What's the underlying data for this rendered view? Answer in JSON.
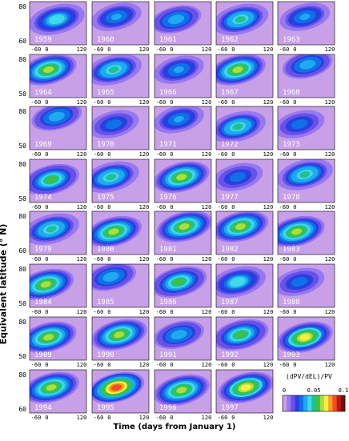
{
  "chart_data": {
    "type": "heatmap",
    "ylabel": "Equivalent latitude (° N)",
    "xlabel": "Time (days from January 1)",
    "colorbar": {
      "label": "(dPV/dEL)/PV",
      "tick_labels": [
        "0",
        "0.05",
        "0.1"
      ],
      "range": [
        0,
        0.1
      ],
      "colors": [
        "#c8a0e8",
        "#9878f0",
        "#6850e8",
        "#2840e0",
        "#1070e8",
        "#20a8f0",
        "#40d8e8",
        "#20c090",
        "#40c040",
        "#a8e040",
        "#f8f040",
        "#f8a020",
        "#f05020",
        "#c01818",
        "#701010"
      ]
    },
    "x_tick_labels": [
      "-60",
      "0",
      "120"
    ],
    "x_range": [
      -60,
      150
    ],
    "y_tick_labels": [
      "80",
      "60",
      "50"
    ],
    "panels": [
      {
        "year": "1959",
        "row": 0,
        "col": 0,
        "peak_day": 40,
        "peak_lat": 68,
        "strength": 0.045
      },
      {
        "year": "1960",
        "row": 0,
        "col": 1,
        "peak_day": 30,
        "peak_lat": 70,
        "strength": 0.035
      },
      {
        "year": "1961",
        "row": 0,
        "col": 2,
        "peak_day": 20,
        "peak_lat": 68,
        "strength": 0.04
      },
      {
        "year": "1962",
        "row": 0,
        "col": 3,
        "peak_day": 30,
        "peak_lat": 68,
        "strength": 0.05
      },
      {
        "year": "1963",
        "row": 0,
        "col": 4,
        "peak_day": 40,
        "peak_lat": 70,
        "strength": 0.035
      },
      {
        "year": "1964",
        "row": 1,
        "col": 0,
        "peak_day": 10,
        "peak_lat": 70,
        "strength": 0.06
      },
      {
        "year": "1965",
        "row": 1,
        "col": 1,
        "peak_day": 20,
        "peak_lat": 70,
        "strength": 0.05
      },
      {
        "year": "1966",
        "row": 1,
        "col": 2,
        "peak_day": 30,
        "peak_lat": 70,
        "strength": 0.035
      },
      {
        "year": "1967",
        "row": 1,
        "col": 3,
        "peak_day": 20,
        "peak_lat": 70,
        "strength": 0.06
      },
      {
        "year": "1968",
        "row": 1,
        "col": 4,
        "peak_day": 50,
        "peak_lat": 74,
        "strength": 0.04
      },
      {
        "year": "1969",
        "row": 2,
        "col": 0,
        "peak_day": 40,
        "peak_lat": 74,
        "strength": 0.04
      },
      {
        "year": "1970",
        "row": 2,
        "col": 1,
        "peak_day": 20,
        "peak_lat": 68,
        "strength": 0.03
      },
      {
        "year": "1971",
        "row": 2,
        "col": 2,
        "peak_day": 30,
        "peak_lat": 72,
        "strength": 0.035
      },
      {
        "year": "1972",
        "row": 2,
        "col": 3,
        "peak_day": 20,
        "peak_lat": 66,
        "strength": 0.05
      },
      {
        "year": "1973",
        "row": 2,
        "col": 4,
        "peak_day": 20,
        "peak_lat": 68,
        "strength": 0.03
      },
      {
        "year": "1974",
        "row": 3,
        "col": 0,
        "peak_day": 20,
        "peak_lat": 66,
        "strength": 0.055
      },
      {
        "year": "1975",
        "row": 3,
        "col": 1,
        "peak_day": 10,
        "peak_lat": 68,
        "strength": 0.05
      },
      {
        "year": "1976",
        "row": 3,
        "col": 2,
        "peak_day": 40,
        "peak_lat": 68,
        "strength": 0.06
      },
      {
        "year": "1977",
        "row": 3,
        "col": 3,
        "peak_day": 20,
        "peak_lat": 68,
        "strength": 0.03
      },
      {
        "year": "1978",
        "row": 3,
        "col": 4,
        "peak_day": 40,
        "peak_lat": 70,
        "strength": 0.05
      },
      {
        "year": "1979",
        "row": 4,
        "col": 0,
        "peak_day": 20,
        "peak_lat": 68,
        "strength": 0.05
      },
      {
        "year": "1980",
        "row": 4,
        "col": 1,
        "peak_day": 20,
        "peak_lat": 66,
        "strength": 0.06
      },
      {
        "year": "1981",
        "row": 4,
        "col": 2,
        "peak_day": 50,
        "peak_lat": 70,
        "strength": 0.06
      },
      {
        "year": "1982",
        "row": 4,
        "col": 3,
        "peak_day": 30,
        "peak_lat": 70,
        "strength": 0.06
      },
      {
        "year": "1983",
        "row": 4,
        "col": 4,
        "peak_day": 10,
        "peak_lat": 66,
        "strength": 0.06
      },
      {
        "year": "1984",
        "row": 5,
        "col": 0,
        "peak_day": 0,
        "peak_lat": 66,
        "strength": 0.06
      },
      {
        "year": "1985",
        "row": 5,
        "col": 1,
        "peak_day": 10,
        "peak_lat": 72,
        "strength": 0.04
      },
      {
        "year": "1986",
        "row": 5,
        "col": 2,
        "peak_day": 30,
        "peak_lat": 68,
        "strength": 0.055
      },
      {
        "year": "1987",
        "row": 5,
        "col": 3,
        "peak_day": 20,
        "peak_lat": 68,
        "strength": 0.045
      },
      {
        "year": "1988",
        "row": 5,
        "col": 4,
        "peak_day": 20,
        "peak_lat": 68,
        "strength": 0.03
      },
      {
        "year": "1989",
        "row": 6,
        "col": 0,
        "peak_day": 10,
        "peak_lat": 66,
        "strength": 0.06
      },
      {
        "year": "1990",
        "row": 6,
        "col": 1,
        "peak_day": 40,
        "peak_lat": 68,
        "strength": 0.065
      },
      {
        "year": "1991",
        "row": 6,
        "col": 2,
        "peak_day": 30,
        "peak_lat": 68,
        "strength": 0.04
      },
      {
        "year": "1992",
        "row": 6,
        "col": 3,
        "peak_day": 30,
        "peak_lat": 68,
        "strength": 0.055
      },
      {
        "year": "1993",
        "row": 6,
        "col": 4,
        "peak_day": 40,
        "peak_lat": 66,
        "strength": 0.07
      },
      {
        "year": "1994",
        "row": 7,
        "col": 0,
        "peak_day": 20,
        "peak_lat": 68,
        "strength": 0.06
      },
      {
        "year": "1995",
        "row": 7,
        "col": 1,
        "peak_day": 30,
        "peak_lat": 68,
        "strength": 0.085
      },
      {
        "year": "1996",
        "row": 7,
        "col": 2,
        "peak_day": 40,
        "peak_lat": 66,
        "strength": 0.065
      },
      {
        "year": "1997",
        "row": 7,
        "col": 3,
        "peak_day": 50,
        "peak_lat": 68,
        "strength": 0.07
      }
    ]
  }
}
